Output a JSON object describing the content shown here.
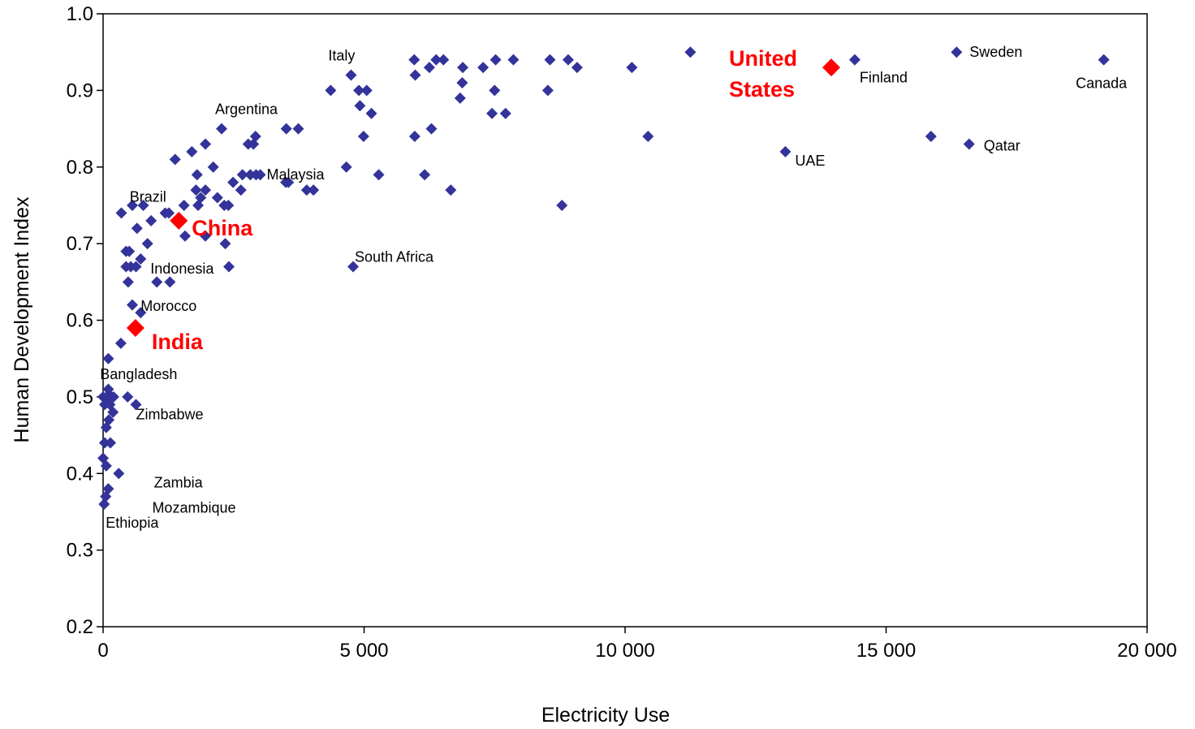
{
  "chart_data": {
    "type": "scatter",
    "title": "",
    "xlabel": "Electricity Use",
    "ylabel": "Human Development Index",
    "xlim": [
      0,
      20000
    ],
    "ylim": [
      0.2,
      1.0
    ],
    "x_ticks": [
      0,
      5000,
      10000,
      15000,
      20000
    ],
    "x_tick_labels": [
      "0",
      "5 000",
      "10 000",
      "15 000",
      "20 000"
    ],
    "y_ticks": [
      0.2,
      0.3,
      0.4,
      0.5,
      0.6,
      0.7,
      0.8,
      0.9,
      1.0
    ],
    "y_tick_labels": [
      "0.2",
      "0.3",
      "0.4",
      "0.5",
      "0.6",
      "0.7",
      "0.8",
      "0.9",
      "1.0"
    ],
    "grid": false,
    "legend": "none",
    "colors": {
      "series": "#33339A",
      "highlight": "#FF0000"
    },
    "series": [
      {
        "points": [
          [
            20,
            0.36
          ],
          [
            50,
            0.37
          ],
          [
            100,
            0.38
          ],
          [
            60,
            0.41
          ],
          [
            300,
            0.4
          ],
          [
            0,
            0.42
          ],
          [
            30,
            0.44
          ],
          [
            140,
            0.44
          ],
          [
            60,
            0.46
          ],
          [
            110,
            0.47
          ],
          [
            0,
            0.5
          ],
          [
            30,
            0.49
          ],
          [
            70,
            0.5
          ],
          [
            100,
            0.51
          ],
          [
            160,
            0.5
          ],
          [
            200,
            0.5
          ],
          [
            130,
            0.49
          ],
          [
            190,
            0.48
          ],
          [
            470,
            0.5
          ],
          [
            630,
            0.49
          ],
          [
            100,
            0.55
          ],
          [
            340,
            0.57
          ],
          [
            560,
            0.62
          ],
          [
            720,
            0.61
          ],
          [
            480,
            0.65
          ],
          [
            1030,
            0.65
          ],
          [
            1280,
            0.65
          ],
          [
            440,
            0.67
          ],
          [
            530,
            0.67
          ],
          [
            630,
            0.67
          ],
          [
            720,
            0.68
          ],
          [
            2410,
            0.67
          ],
          [
            440,
            0.69
          ],
          [
            500,
            0.69
          ],
          [
            850,
            0.7
          ],
          [
            650,
            0.72
          ],
          [
            2340,
            0.7
          ],
          [
            1570,
            0.71
          ],
          [
            1960,
            0.71
          ],
          [
            2190,
            0.76
          ],
          [
            350,
            0.74
          ],
          [
            560,
            0.75
          ],
          [
            770,
            0.75
          ],
          [
            920,
            0.73
          ],
          [
            1190,
            0.74
          ],
          [
            1260,
            0.74
          ],
          [
            1550,
            0.75
          ],
          [
            1820,
            0.75
          ],
          [
            1870,
            0.76
          ],
          [
            2320,
            0.75
          ],
          [
            2400,
            0.75
          ],
          [
            1780,
            0.77
          ],
          [
            1960,
            0.77
          ],
          [
            2110,
            0.8
          ],
          [
            2490,
            0.78
          ],
          [
            2640,
            0.77
          ],
          [
            2670,
            0.79
          ],
          [
            2820,
            0.79
          ],
          [
            2930,
            0.79
          ],
          [
            3010,
            0.79
          ],
          [
            3550,
            0.78
          ],
          [
            3900,
            0.77
          ],
          [
            4030,
            0.77
          ],
          [
            3500,
            0.78
          ],
          [
            1380,
            0.81
          ],
          [
            1700,
            0.82
          ],
          [
            1960,
            0.83
          ],
          [
            1800,
            0.79
          ],
          [
            2270,
            0.85
          ],
          [
            2780,
            0.83
          ],
          [
            2880,
            0.83
          ],
          [
            2920,
            0.84
          ],
          [
            3510,
            0.85
          ],
          [
            3740,
            0.85
          ],
          [
            4360,
            0.9
          ],
          [
            4660,
            0.8
          ],
          [
            4750,
            0.92
          ],
          [
            4900,
            0.9
          ],
          [
            4920,
            0.88
          ],
          [
            5050,
            0.9
          ],
          [
            5140,
            0.87
          ],
          [
            4990,
            0.84
          ],
          [
            5280,
            0.79
          ],
          [
            4790,
            0.67
          ],
          [
            5970,
            0.84
          ],
          [
            5960,
            0.94
          ],
          [
            5980,
            0.92
          ],
          [
            6250,
            0.93
          ],
          [
            6380,
            0.94
          ],
          [
            6520,
            0.94
          ],
          [
            6290,
            0.85
          ],
          [
            6160,
            0.79
          ],
          [
            6660,
            0.77
          ],
          [
            6840,
            0.89
          ],
          [
            6880,
            0.91
          ],
          [
            6890,
            0.93
          ],
          [
            7280,
            0.93
          ],
          [
            7450,
            0.87
          ],
          [
            7500,
            0.9
          ],
          [
            7520,
            0.94
          ],
          [
            7710,
            0.87
          ],
          [
            7860,
            0.94
          ],
          [
            8520,
            0.9
          ],
          [
            8560,
            0.94
          ],
          [
            8790,
            0.75
          ],
          [
            8910,
            0.94
          ],
          [
            9080,
            0.93
          ],
          [
            10130,
            0.93
          ],
          [
            10440,
            0.84
          ],
          [
            11250,
            0.95
          ],
          [
            13070,
            0.82
          ],
          [
            14400,
            0.94
          ],
          [
            15860,
            0.84
          ],
          [
            16350,
            0.95
          ],
          [
            16590,
            0.83
          ],
          [
            19170,
            0.94
          ]
        ]
      }
    ],
    "highlighted": [
      {
        "x": 620,
        "y": 0.59
      },
      {
        "x": 1450,
        "y": 0.73
      },
      {
        "x": 13950,
        "y": 0.93
      }
    ],
    "labels": [
      {
        "text": "Italy",
        "x": 4750,
        "y": 0.92
      },
      {
        "text": "Argentina",
        "x": 2270,
        "y": 0.85
      },
      {
        "text": "Brazil",
        "x": 1380,
        "y": 0.74
      },
      {
        "text": "Malaysia",
        "x": 3010,
        "y": 0.79
      },
      {
        "text": "Indonesia",
        "x": 720,
        "y": 0.68
      },
      {
        "text": "South Africa",
        "x": 4790,
        "y": 0.67
      },
      {
        "text": "Morocco",
        "x": 720,
        "y": 0.61
      },
      {
        "text": "Bangladesh",
        "x": 160,
        "y": 0.5
      },
      {
        "text": "Zimbabwe",
        "x": 630,
        "y": 0.49
      },
      {
        "text": "Zambia",
        "x": 880,
        "y": 0.39
      },
      {
        "text": "Mozambique",
        "x": 660,
        "y": 0.355
      },
      {
        "text": "Ethiopia",
        "x": 20,
        "y": 0.36
      },
      {
        "text": "UAE",
        "x": 13070,
        "y": 0.82
      },
      {
        "text": "Finland",
        "x": 14400,
        "y": 0.94
      },
      {
        "text": "Sweden",
        "x": 16350,
        "y": 0.95
      },
      {
        "text": "Qatar",
        "x": 16590,
        "y": 0.83
      },
      {
        "text": "Canada",
        "x": 19170,
        "y": 0.94
      }
    ],
    "highlight_labels": [
      {
        "lines": [
          "India"
        ],
        "x": 620,
        "y": 0.59
      },
      {
        "lines": [
          "China"
        ],
        "x": 1450,
        "y": 0.73
      },
      {
        "lines": [
          "United",
          "States"
        ],
        "x": 13950,
        "y": 0.93
      }
    ]
  }
}
